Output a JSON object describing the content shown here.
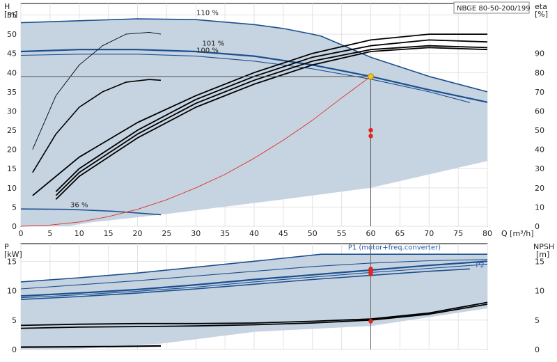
{
  "model_badge": "NBGE 80-50-200/199",
  "colors": {
    "band": "#c6d3e1",
    "band_light": "#e6edf5",
    "curve_dark": "#1b4f8f",
    "curve_mid": "#2d62a3",
    "efficiency": "#000000",
    "system": "#e03020",
    "duty_point": "#f6c22a",
    "marker": "#e3241b",
    "grid": "#e2e2e2"
  },
  "chart_data": [
    {
      "type": "line",
      "panel": "head",
      "left_axis_title": "H",
      "left_axis_unit": "[m]",
      "right_axis_title": "eta",
      "right_axis_unit": "[%]",
      "xlabel": "Q [m³/h]",
      "xlim": [
        0,
        80
      ],
      "ylim": [
        0,
        58
      ],
      "y2lim": [
        0,
        116
      ],
      "x_ticks": [
        0,
        5,
        10,
        15,
        20,
        25,
        30,
        35,
        40,
        45,
        50,
        55,
        60,
        65,
        70,
        75,
        80
      ],
      "y_ticks": [
        0,
        5,
        10,
        15,
        20,
        25,
        30,
        35,
        40,
        45,
        50,
        55
      ],
      "y2_ticks": [
        0,
        10,
        20,
        30,
        40,
        50,
        60,
        70,
        80,
        90
      ],
      "grid": true,
      "curve_labels": [
        {
          "text": "110 %",
          "x": 32,
          "y": 55
        },
        {
          "text": "101 %",
          "x": 33,
          "y": 47
        },
        {
          "text": "100 %",
          "x": 32,
          "y": 45.2
        },
        {
          "text": "36 %",
          "x": 10,
          "y": 5
        }
      ],
      "series": [
        {
          "role": "head_110",
          "x": [
            0,
            10,
            20,
            30,
            40,
            45,
            50,
            51.5,
            60,
            70,
            80
          ],
          "y": [
            53,
            53.5,
            54,
            53.8,
            52.5,
            51.5,
            50,
            49.5,
            44,
            39,
            35
          ]
        },
        {
          "role": "head_101",
          "x": [
            0,
            10,
            20,
            30,
            40,
            50,
            60,
            70,
            80
          ],
          "y": [
            45.5,
            46,
            46,
            45.5,
            44.3,
            42,
            39,
            35.5,
            32.3
          ]
        },
        {
          "role": "head_100",
          "x": [
            0,
            10,
            20,
            30,
            40,
            50,
            60,
            70,
            77
          ],
          "y": [
            44.5,
            44.8,
            44.8,
            44.3,
            43,
            41,
            38.3,
            35,
            32.2
          ]
        },
        {
          "role": "head_36",
          "x": [
            0,
            8,
            16,
            24
          ],
          "y": [
            4.5,
            4.4,
            3.9,
            3
          ]
        },
        {
          "role": "eta_a",
          "x": [
            2,
            6,
            10,
            14,
            18,
            22,
            24
          ],
          "y": [
            20,
            34,
            42,
            47,
            50,
            50.5,
            50
          ]
        },
        {
          "role": "eta_b",
          "x": [
            2,
            6,
            10,
            14,
            18,
            22,
            24
          ],
          "y": [
            14,
            24,
            31,
            35,
            37.5,
            38.2,
            38
          ]
        },
        {
          "role": "eta_c",
          "x": [
            2,
            10,
            20,
            30,
            40,
            50,
            60,
            70,
            80
          ],
          "y": [
            8,
            18,
            27,
            34,
            40,
            45,
            48.5,
            50,
            50
          ]
        },
        {
          "role": "eta_d",
          "x": [
            6,
            10,
            20,
            30,
            40,
            50,
            60,
            70,
            80
          ],
          "y": [
            9,
            15,
            25,
            33,
            39,
            44,
            47,
            48.5,
            48
          ]
        },
        {
          "role": "eta_e",
          "x": [
            6,
            10,
            20,
            30,
            40,
            50,
            60,
            70,
            80
          ],
          "y": [
            8,
            14,
            24,
            32,
            38,
            43,
            46,
            47,
            46.5
          ]
        },
        {
          "role": "eta_f",
          "x": [
            6,
            10,
            20,
            30,
            40,
            50,
            60,
            70,
            80
          ],
          "y": [
            7,
            13,
            23,
            31,
            37,
            42,
            45.5,
            46.5,
            46
          ]
        },
        {
          "role": "system",
          "x": [
            0,
            5,
            10,
            15,
            20,
            25,
            30,
            35,
            40,
            45,
            50,
            55,
            60
          ],
          "y": [
            0,
            0.3,
            1.1,
            2.5,
            4.4,
            6.9,
            10,
            13.5,
            17.7,
            22.4,
            27.6,
            33.4,
            39
          ]
        }
      ],
      "duty_point": {
        "x": 60,
        "y": 39
      },
      "markers": [
        {
          "x": 60,
          "y": 25
        },
        {
          "x": 60,
          "y": 23.5
        }
      ]
    },
    {
      "type": "line",
      "panel": "power",
      "left_axis_title": "P",
      "left_axis_unit": "[kW]",
      "right_axis_title": "NPSH",
      "right_axis_unit": "[m]",
      "xlim": [
        0,
        80
      ],
      "ylim": [
        0,
        18
      ],
      "y2lim": [
        0,
        18
      ],
      "y_ticks": [
        0,
        5,
        10,
        15
      ],
      "y2_ticks": [
        0,
        5,
        10,
        15
      ],
      "grid": true,
      "curve_labels": [
        {
          "text": "P1 (motor+freq.converter)",
          "x": 72,
          "y": 17,
          "color": "blue"
        },
        {
          "text": "P2",
          "x": 79.5,
          "y": 14,
          "color": "blue"
        }
      ],
      "series": [
        {
          "role": "p_110",
          "x": [
            0,
            10,
            20,
            30,
            40,
            51.5,
            60,
            70,
            80
          ],
          "y": [
            11.5,
            12.2,
            13,
            14,
            15,
            16.2,
            16.2,
            16.2,
            16.2
          ]
        },
        {
          "role": "p_a",
          "x": [
            0,
            10,
            20,
            30,
            40,
            50,
            60,
            70,
            80
          ],
          "y": [
            10.3,
            11,
            11.7,
            12.5,
            13.3,
            14.1,
            14.7,
            15.1,
            15.3
          ]
        },
        {
          "role": "p_b",
          "x": [
            0,
            10,
            20,
            30,
            40,
            50,
            60,
            70,
            80
          ],
          "y": [
            9.1,
            9.6,
            10.2,
            11,
            11.9,
            12.7,
            13.5,
            14.3,
            15
          ]
        },
        {
          "role": "p_c",
          "x": [
            0,
            10,
            20,
            30,
            40,
            50,
            60,
            70,
            80
          ],
          "y": [
            8.8,
            9.3,
            9.9,
            10.6,
            11.5,
            12.3,
            13.1,
            13.8,
            14.5
          ]
        },
        {
          "role": "p_d",
          "x": [
            0,
            10,
            20,
            30,
            40,
            50,
            60,
            70,
            77
          ],
          "y": [
            8.5,
            9,
            9.6,
            10.3,
            11.1,
            11.9,
            12.6,
            13.3,
            13.7
          ]
        },
        {
          "role": "p_low",
          "x": [
            0,
            8,
            16,
            24
          ],
          "y": [
            0.4,
            0.45,
            0.5,
            0.6
          ]
        },
        {
          "role": "npsh_a",
          "x": [
            0,
            10,
            20,
            30,
            40,
            50,
            60,
            70,
            80
          ],
          "y": [
            4.1,
            4.3,
            4.4,
            4.4,
            4.5,
            4.8,
            5.2,
            6.2,
            8
          ]
        },
        {
          "role": "npsh_b",
          "x": [
            0,
            10,
            20,
            30,
            40,
            50,
            60,
            70,
            80
          ],
          "y": [
            3.6,
            3.8,
            3.9,
            4,
            4.2,
            4.5,
            5,
            6,
            7.7
          ]
        }
      ],
      "markers": [
        {
          "x": 60,
          "y": 13.7
        },
        {
          "x": 60,
          "y": 13.3
        },
        {
          "x": 60,
          "y": 12.8
        },
        {
          "x": 60,
          "y": 4.8
        }
      ]
    }
  ]
}
